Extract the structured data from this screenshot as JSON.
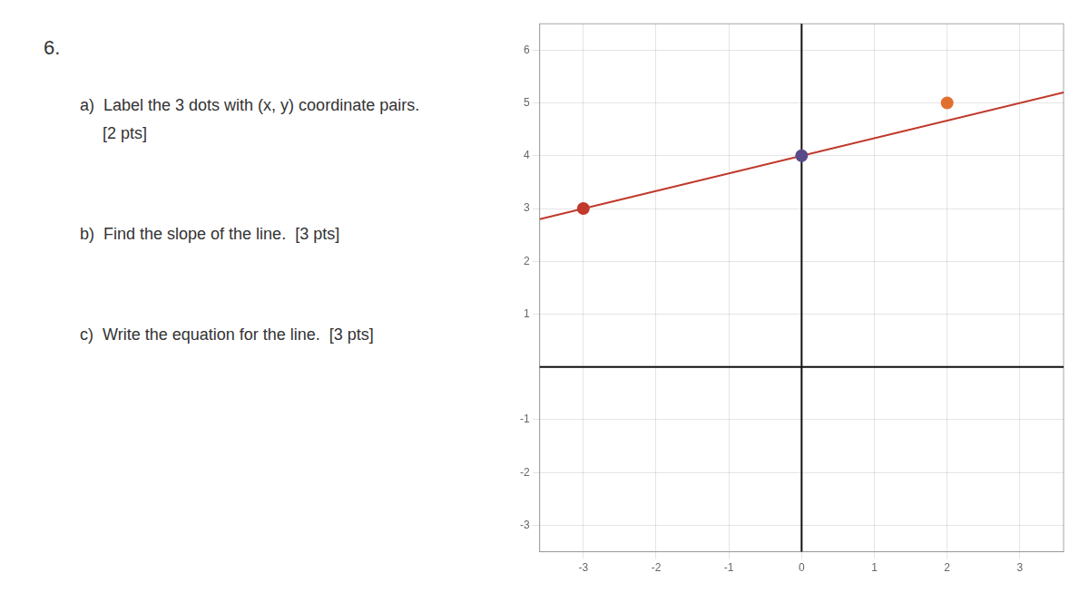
{
  "chart_data": {
    "type": "scatter",
    "title": "6.",
    "annotations": [
      "a)  Label the 3 dots with (x, y) coordinate pairs.",
      "     [2 pts]",
      "b)  Find the slope of the line.  [3 pts]",
      "c)  Write the equation for the line.  [3 pts]"
    ],
    "series": [
      {
        "type": "line",
        "color": "#c0392b",
        "x": [
          -3.6,
          3.6
        ],
        "values": [
          2.80000012,
          5.19999988
        ]
      },
      {
        "type": "scatter",
        "colors": [
          "#c0392b",
          "#5b4a8a",
          "#e07030"
        ],
        "x": [
          -3,
          0,
          2
        ],
        "values": [
          3,
          4,
          5
        ]
      }
    ],
    "xlim": [
      -3.6,
      3.6
    ],
    "ylim": [
      -3.5,
      6.5
    ],
    "xticks": [
      -3,
      -2,
      -1,
      0,
      1,
      2,
      3
    ],
    "yticks": [
      -3,
      -2,
      -1,
      1,
      2,
      3,
      4,
      5,
      6
    ],
    "grid": true
  }
}
